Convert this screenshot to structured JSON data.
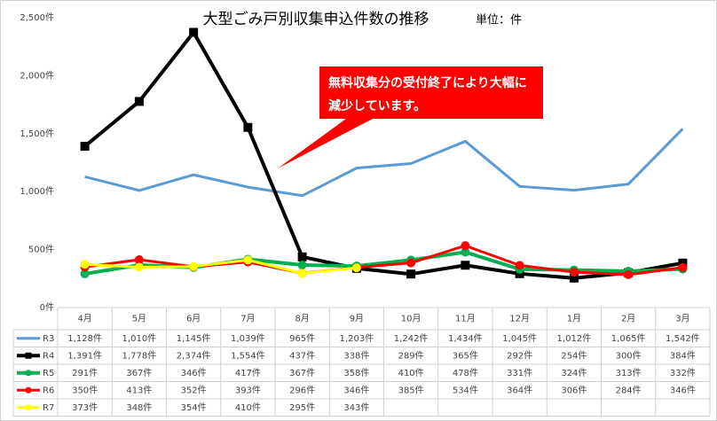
{
  "chart_data": {
    "type": "line",
    "title": "大型ごみ戸別収集申込件数の推移",
    "unit_label": "単位：件",
    "annotation": "無料収集分の受付終了により大幅に減少しています。",
    "categories": [
      "4月",
      "5月",
      "6月",
      "7月",
      "8月",
      "9月",
      "10月",
      "11月",
      "12月",
      "1月",
      "2月",
      "3月"
    ],
    "ylim": [
      0,
      2500
    ],
    "yticks": [
      {
        "value": 0,
        "label": "0件"
      },
      {
        "value": 500,
        "label": "500件"
      },
      {
        "value": 1000,
        "label": "1,000件"
      },
      {
        "value": 1500,
        "label": "1,500件"
      },
      {
        "value": 2000,
        "label": "2,000件"
      },
      {
        "value": 2500,
        "label": "2,500件"
      }
    ],
    "grid": false,
    "series": [
      {
        "name": "R3",
        "color": "#5b9bd5",
        "marker": "none",
        "values": [
          1128,
          1010,
          1145,
          1039,
          965,
          1203,
          1242,
          1434,
          1045,
          1012,
          1065,
          1542
        ],
        "value_labels": [
          "1,128件",
          "1,010件",
          "1,145件",
          "1,039件",
          "965件",
          "1,203件",
          "1,242件",
          "1,434件",
          "1,045件",
          "1,012件",
          "1,065件",
          "1,542件"
        ]
      },
      {
        "name": "R4",
        "color": "#000000",
        "marker": "square",
        "values": [
          1391,
          1778,
          2374,
          1554,
          437,
          338,
          289,
          365,
          292,
          254,
          300,
          384
        ],
        "value_labels": [
          "1,391件",
          "1,778件",
          "2,374件",
          "1,554件",
          "437件",
          "338件",
          "289件",
          "365件",
          "292件",
          "254件",
          "300件",
          "384件"
        ]
      },
      {
        "name": "R5",
        "color": "#00b050",
        "marker": "circle",
        "values": [
          291,
          367,
          346,
          417,
          367,
          358,
          410,
          478,
          331,
          324,
          313,
          332
        ],
        "value_labels": [
          "291件",
          "367件",
          "346件",
          "417件",
          "367件",
          "358件",
          "410件",
          "478件",
          "331件",
          "324件",
          "313件",
          "332件"
        ]
      },
      {
        "name": "R6",
        "color": "#ff0000",
        "marker": "circle",
        "values": [
          350,
          413,
          352,
          393,
          296,
          346,
          385,
          534,
          364,
          306,
          284,
          346
        ],
        "value_labels": [
          "350件",
          "413件",
          "352件",
          "393件",
          "296件",
          "346件",
          "385件",
          "534件",
          "364件",
          "306件",
          "284件",
          "346件"
        ]
      },
      {
        "name": "R7",
        "color": "#ffff00",
        "marker": "circle",
        "values": [
          373,
          348,
          354,
          410,
          295,
          343,
          null,
          null,
          null,
          null,
          null,
          null
        ],
        "value_labels": [
          "373件",
          "348件",
          "354件",
          "410件",
          "295件",
          "343件",
          null,
          null,
          null,
          null,
          null,
          null
        ]
      }
    ]
  }
}
